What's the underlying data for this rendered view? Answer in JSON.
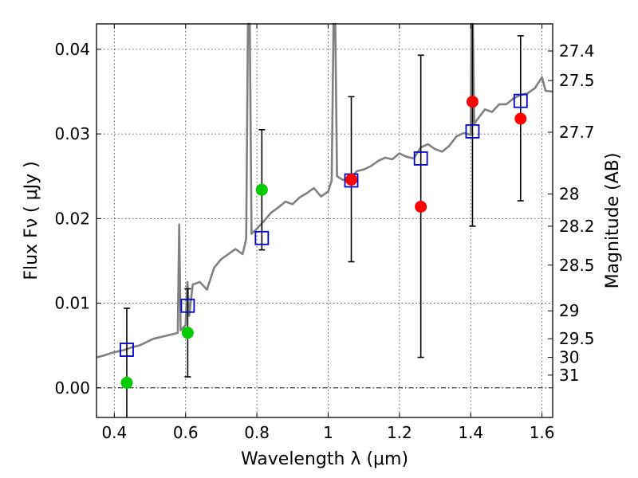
{
  "chart_data": {
    "type": "scatter",
    "xlabel": "Wavelength  λ (μm)",
    "ylabel": "Flux  Fν  ( μJy )",
    "ylabel_right": "Magnitude (AB)",
    "xlim": [
      0.35,
      1.63
    ],
    "ylim": [
      -0.0035,
      0.043
    ],
    "grid": true,
    "xticks": [
      0.4,
      0.6,
      0.8,
      1.0,
      1.2,
      1.4,
      1.6
    ],
    "xtick_labels": [
      "0.4",
      "0.6",
      "0.8",
      "1",
      "1.2",
      "1.4",
      "1.6"
    ],
    "yticks": [
      0.0,
      0.01,
      0.02,
      0.03,
      0.04
    ],
    "ytick_labels": [
      "0.00",
      "0.01",
      "0.02",
      "0.03",
      "0.04"
    ],
    "right_ticks": [
      {
        "label": "27.4",
        "flux": 0.0398
      },
      {
        "label": "27.5",
        "flux": 0.0363
      },
      {
        "label": "27.7",
        "flux": 0.0302
      },
      {
        "label": "28",
        "flux": 0.0229
      },
      {
        "label": "28.2",
        "flux": 0.0191
      },
      {
        "label": "28.5",
        "flux": 0.0145
      },
      {
        "label": "29",
        "flux": 0.0091
      },
      {
        "label": "29.5",
        "flux": 0.0058
      },
      {
        "label": "30",
        "flux": 0.0036
      },
      {
        "label": "31",
        "flux": 0.0015
      }
    ],
    "series": [
      {
        "kind": "model_spectrum",
        "color": "#808080",
        "x": [
          0.35,
          0.37,
          0.39,
          0.41,
          0.43,
          0.45,
          0.47,
          0.49,
          0.51,
          0.53,
          0.55,
          0.57,
          0.578,
          0.582,
          0.586,
          0.6,
          0.605,
          0.61,
          0.62,
          0.64,
          0.66,
          0.68,
          0.7,
          0.72,
          0.74,
          0.76,
          0.77,
          0.775,
          0.78,
          0.785,
          0.8,
          0.82,
          0.84,
          0.86,
          0.88,
          0.9,
          0.92,
          0.94,
          0.96,
          0.98,
          1.0,
          1.01,
          1.015,
          1.02,
          1.025,
          1.04,
          1.06,
          1.08,
          1.1,
          1.12,
          1.14,
          1.16,
          1.18,
          1.2,
          1.22,
          1.24,
          1.26,
          1.28,
          1.3,
          1.32,
          1.34,
          1.36,
          1.38,
          1.4,
          1.402,
          1.406,
          1.41,
          1.42,
          1.44,
          1.46,
          1.48,
          1.5,
          1.52,
          1.54,
          1.56,
          1.58,
          1.6,
          1.61,
          1.63
        ],
        "y": [
          0.0036,
          0.0038,
          0.0041,
          0.0043,
          0.0045,
          0.0048,
          0.005,
          0.0054,
          0.0058,
          0.006,
          0.0062,
          0.0064,
          0.0065,
          0.0193,
          0.0068,
          0.0074,
          0.0125,
          0.0085,
          0.0122,
          0.0125,
          0.0116,
          0.0142,
          0.0152,
          0.0158,
          0.0164,
          0.0158,
          0.0176,
          0.043,
          0.043,
          0.0182,
          0.0188,
          0.0197,
          0.0207,
          0.0213,
          0.022,
          0.0217,
          0.0225,
          0.023,
          0.0236,
          0.0226,
          0.0232,
          0.0245,
          0.043,
          0.043,
          0.025,
          0.0246,
          0.0245,
          0.0256,
          0.0258,
          0.0262,
          0.0268,
          0.0272,
          0.027,
          0.0277,
          0.0273,
          0.0271,
          0.0284,
          0.0288,
          0.0282,
          0.0279,
          0.0286,
          0.0297,
          0.0301,
          0.0299,
          0.043,
          0.043,
          0.0312,
          0.0318,
          0.0329,
          0.0326,
          0.0335,
          0.0335,
          0.0342,
          0.0346,
          0.0348,
          0.0354,
          0.0367,
          0.0351,
          0.035
        ]
      },
      {
        "kind": "model_photometry",
        "marker": "open-square",
        "color": "#0000cc",
        "x": [
          0.435,
          0.606,
          0.814,
          1.065,
          1.26,
          1.405,
          1.54
        ],
        "y": [
          0.0045,
          0.0097,
          0.0177,
          0.0245,
          0.0271,
          0.0303,
          0.0339
        ]
      },
      {
        "kind": "error_bars",
        "color": "#000000",
        "x": [
          0.435,
          0.606,
          0.814,
          1.065,
          1.26,
          1.405,
          1.54
        ],
        "low": [
          -0.0035,
          0.0013,
          0.0163,
          0.0149,
          0.0036,
          0.0191,
          0.0221
        ],
        "high": [
          0.0094,
          0.0117,
          0.0305,
          0.0344,
          0.0393,
          0.043,
          0.0416
        ]
      },
      {
        "kind": "observed_detection",
        "marker": "filled-circle",
        "color": "#00cc00",
        "x": [
          0.435,
          0.606,
          0.814
        ],
        "y": [
          0.0006,
          0.0065,
          0.0234
        ]
      },
      {
        "kind": "observed_upper_limit",
        "marker": "filled-circle",
        "color": "#ff0000",
        "x": [
          1.065,
          1.26,
          1.405,
          1.54
        ],
        "y": [
          0.0246,
          0.0214,
          0.0338,
          0.0318
        ]
      }
    ]
  }
}
